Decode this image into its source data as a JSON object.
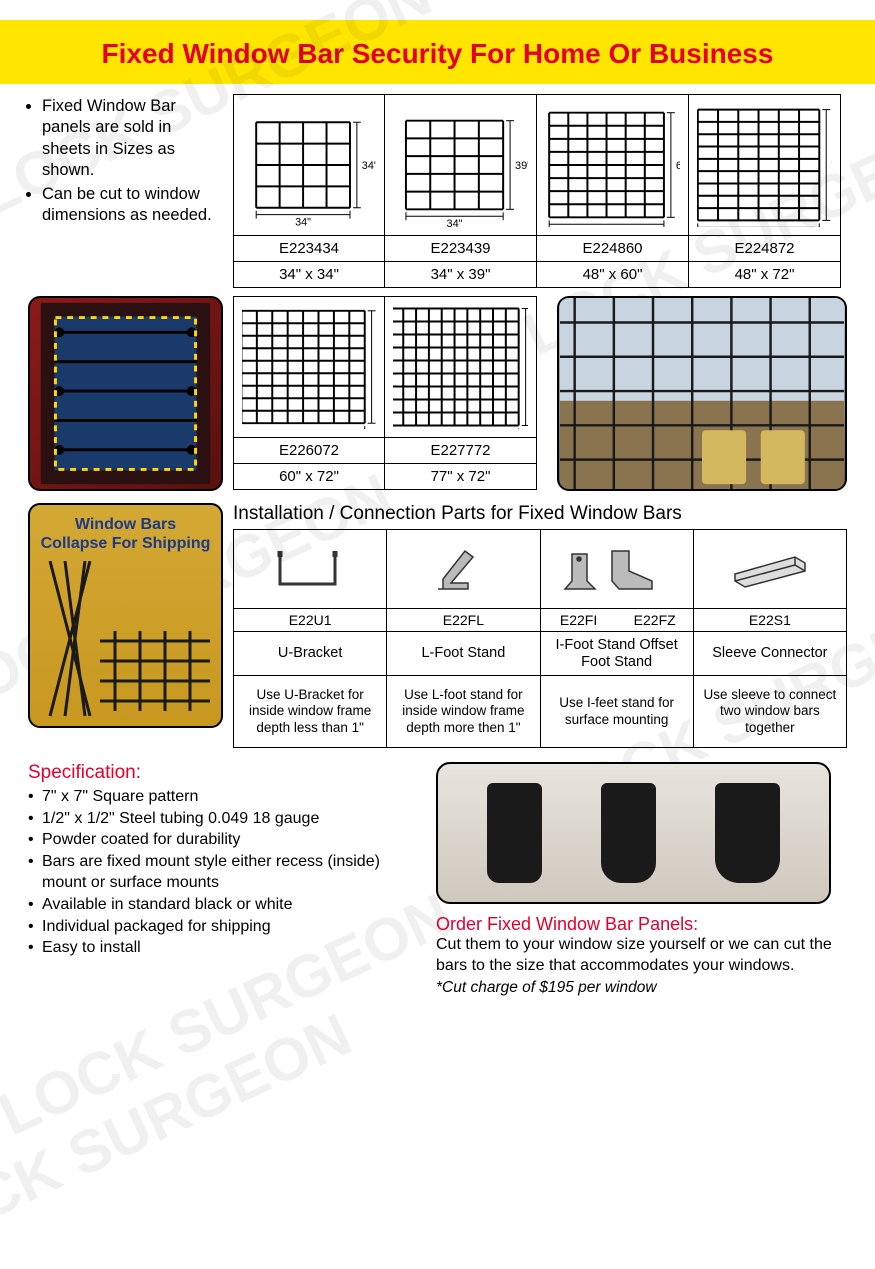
{
  "title": "Fixed Window Bar Security For Home Or Business",
  "intro": [
    "Fixed Window Bar panels are sold in sheets in Sizes as shown.",
    "Can be cut to window dimensions as needed."
  ],
  "sizes_row1": [
    {
      "code": "E223434",
      "dim": "34\" x 34\"",
      "w": "34\"",
      "h": "34\"",
      "cols": 5,
      "rows": 5,
      "scale": 0.7
    },
    {
      "code": "E223439",
      "dim": "34\" x 39\"",
      "w": "34\"",
      "h": "39\"",
      "cols": 5,
      "rows": 6,
      "scale": 0.72
    },
    {
      "code": "E224860",
      "dim": "48\" x 60\"",
      "w": "48\"",
      "h": "60\"",
      "cols": 7,
      "rows": 9,
      "scale": 0.85
    },
    {
      "code": "E224872",
      "dim": "48\" x 72\"",
      "w": "48\"",
      "h": "72\"",
      "cols": 7,
      "rows": 10,
      "scale": 0.9
    }
  ],
  "sizes_row2": [
    {
      "code": "E226072",
      "dim": "60\" x 72\"",
      "w": "60\"",
      "h": "72\"",
      "cols": 9,
      "rows": 10,
      "scale": 0.92
    },
    {
      "code": "E227772",
      "dim": "77\" x 72\"",
      "w": "77\"",
      "h": "72\"",
      "cols": 11,
      "rows": 10,
      "scale": 0.95
    }
  ],
  "collapse_label": "Window Bars Collapse For Shipping",
  "parts_title": "Installation / Connection Parts for Fixed Window Bars",
  "parts": [
    {
      "codes": [
        "E22U1"
      ],
      "name": "U-Bracket",
      "desc": "Use U-Bracket for inside window frame depth less than 1\""
    },
    {
      "codes": [
        "E22FL"
      ],
      "name": "L-Foot Stand",
      "desc": "Use L-foot stand for inside window frame depth more then 1\""
    },
    {
      "codes": [
        "E22FI",
        "E22FZ"
      ],
      "name": "I-Foot Stand Offset Foot Stand",
      "desc": "Use I-feet stand for surface mounting"
    },
    {
      "codes": [
        "E22S1"
      ],
      "name": "Sleeve Connector",
      "desc": "Use sleeve to connect two window bars together"
    }
  ],
  "spec_title": "Specification:",
  "specs": [
    "7\" x 7\" Square pattern",
    "1/2\" x 1/2\" Steel tubing 0.049  18 gauge",
    "Powder coated for durability",
    "Bars are fixed mount style either recess (inside) mount or surface mounts",
    "Available in standard black or white",
    "Individual packaged for shipping",
    "Easy to install"
  ],
  "order_title": "Order Fixed Window Bar Panels:",
  "order_text": "Cut them to your window size yourself or we can cut the bars to the size that accommodates your windows.",
  "order_note": "*Cut charge of $195 per window",
  "colors": {
    "accent_red": "#e4002b",
    "band_yellow": "#ffe600"
  }
}
